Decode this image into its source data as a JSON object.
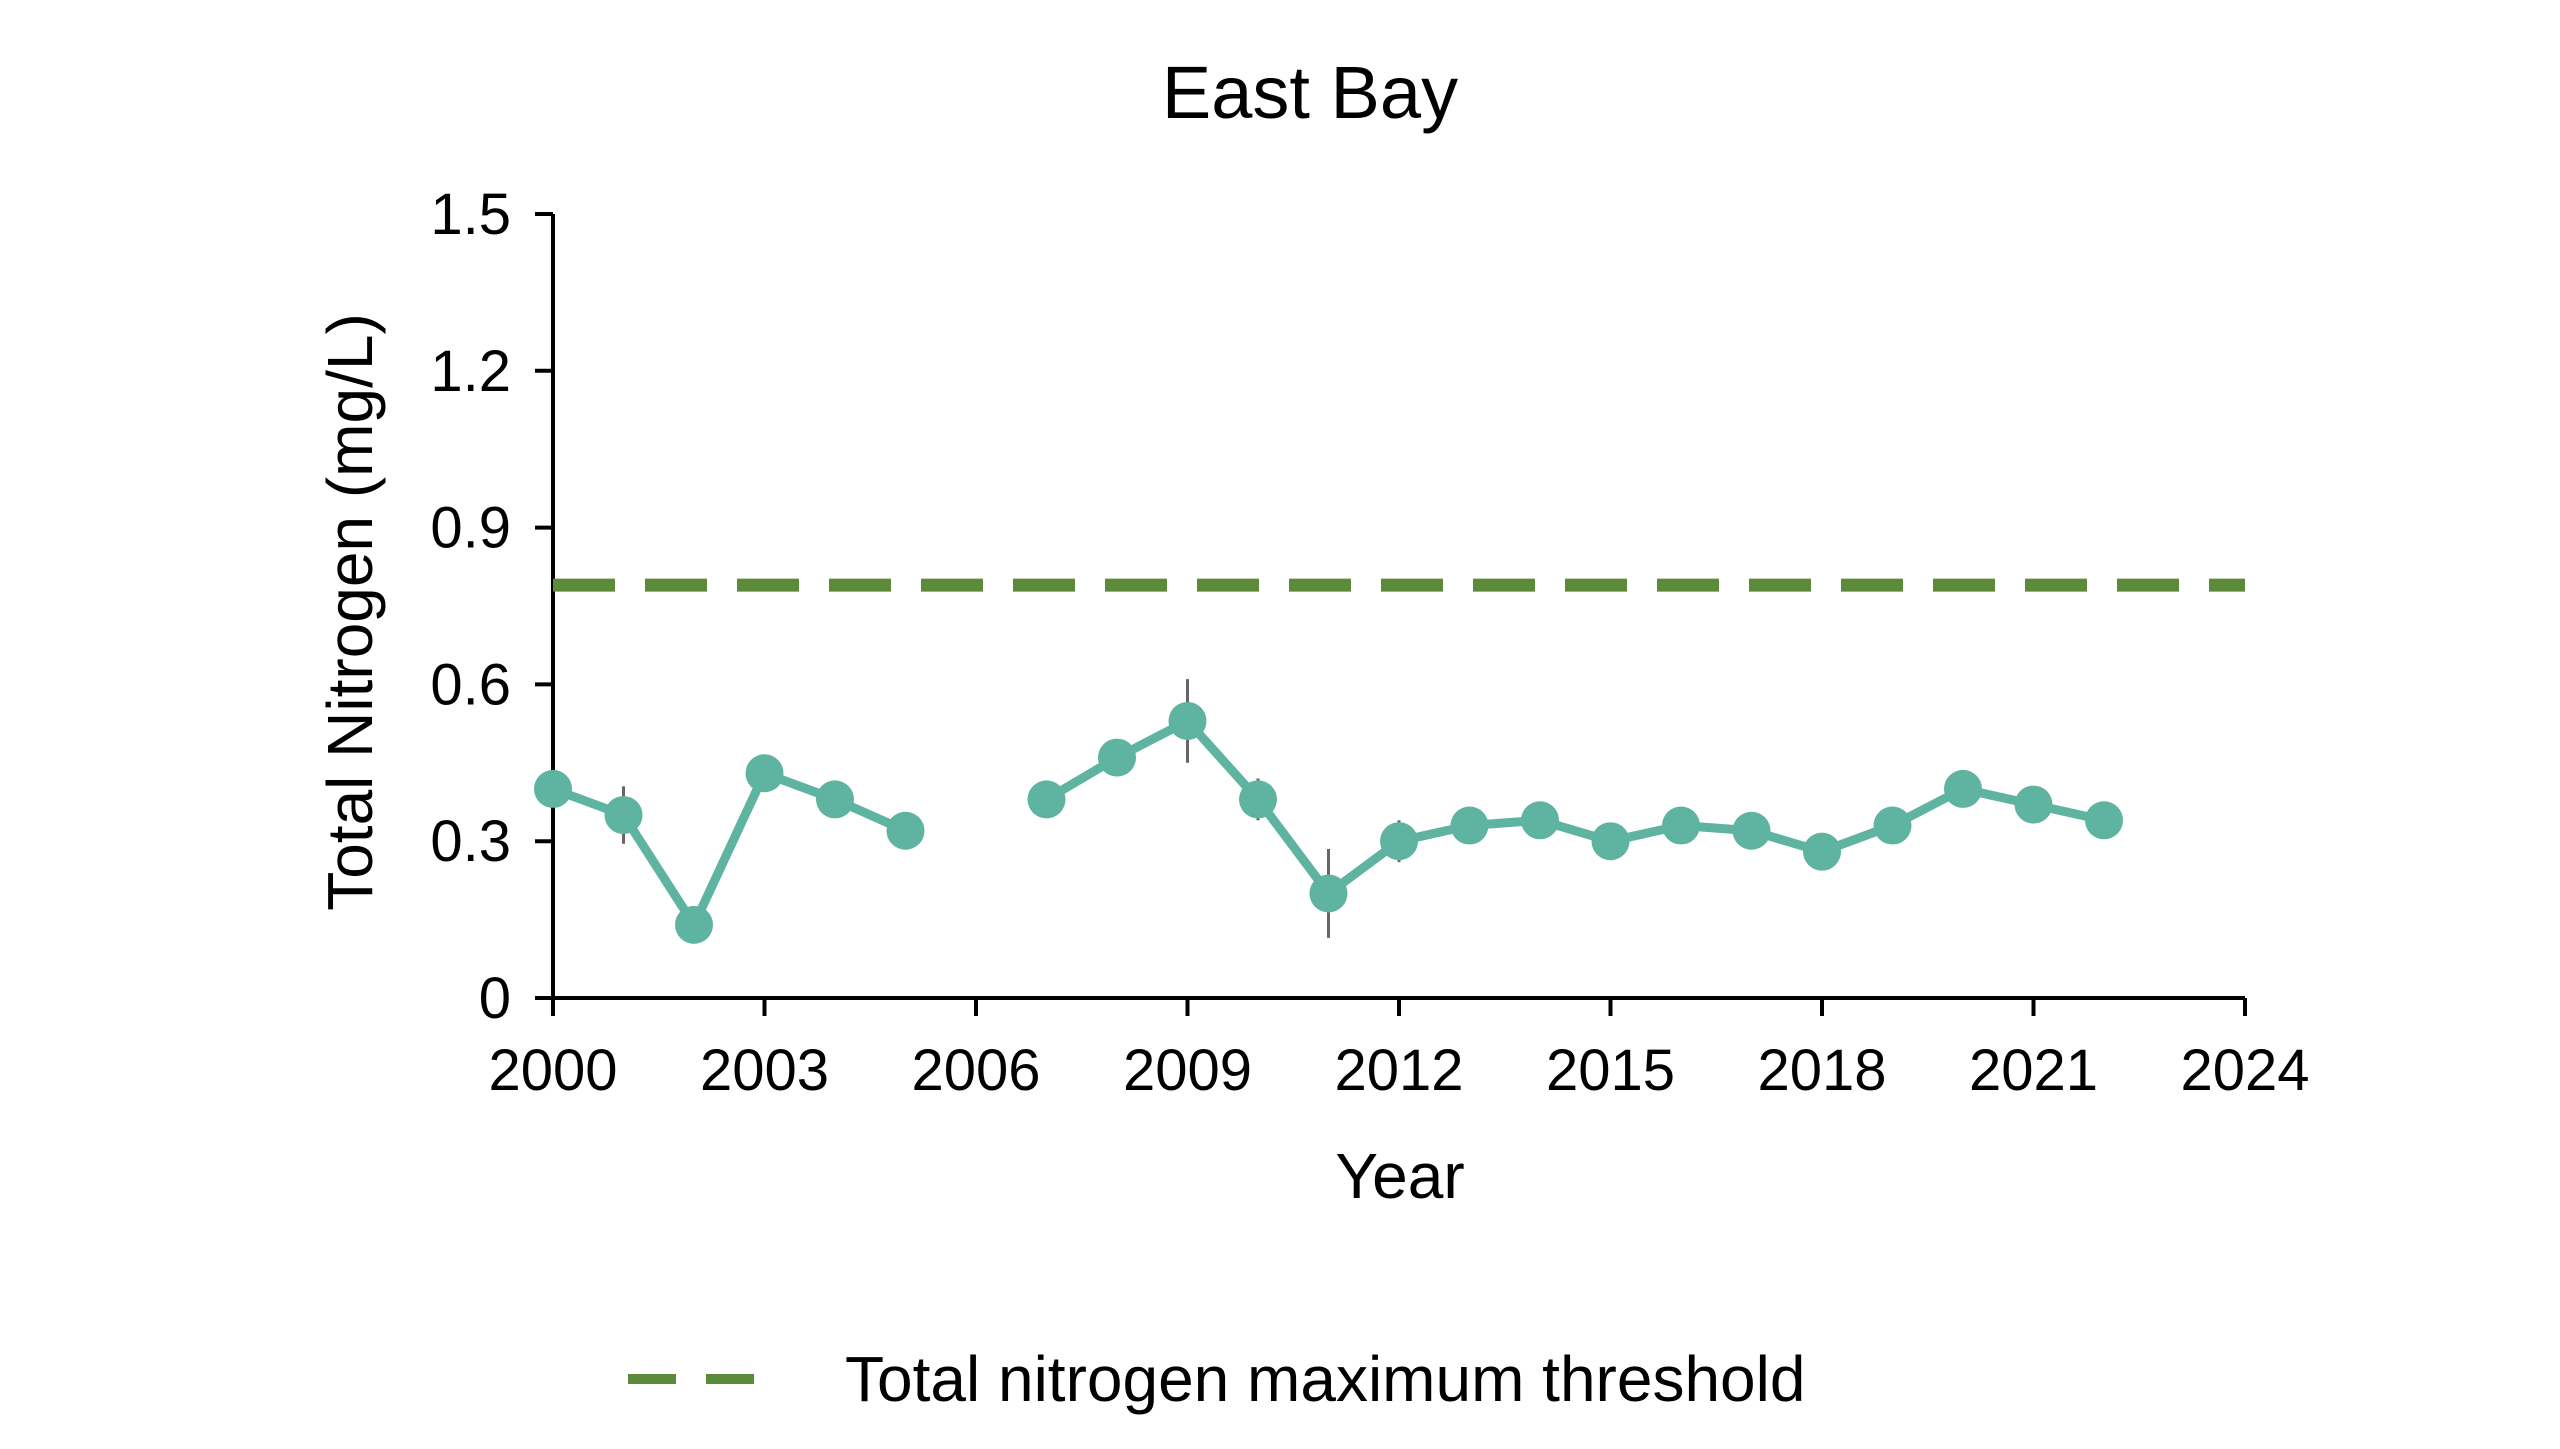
{
  "chart_data": {
    "type": "line",
    "title": "East Bay",
    "xlabel": "Year",
    "ylabel": "Total Nitrogen (mg/L)",
    "xlim": [
      2000,
      2024
    ],
    "ylim": [
      0,
      1.5
    ],
    "xticks": [
      2000,
      2003,
      2006,
      2009,
      2012,
      2015,
      2018,
      2021,
      2024
    ],
    "yticks": [
      0,
      0.3,
      0.6,
      0.9,
      1.2,
      1.5
    ],
    "xtick_labels": [
      "2000",
      "2003",
      "2006",
      "2009",
      "2012",
      "2015",
      "2018",
      "2021",
      "2024"
    ],
    "ytick_labels": [
      "0",
      "0.3",
      "0.6",
      "0.9",
      "1.2",
      "1.5"
    ],
    "grid": false,
    "legend_position": "bottom",
    "series": [
      {
        "color": "#5fb3a1",
        "points": [
          {
            "x": 2000,
            "y": 0.4,
            "err": null
          },
          {
            "x": 2001,
            "y": 0.35,
            "err": 0.055
          },
          {
            "x": 2002,
            "y": 0.14,
            "err": null
          },
          {
            "x": 2003,
            "y": 0.43,
            "err": null
          },
          {
            "x": 2004,
            "y": 0.38,
            "err": null
          },
          {
            "x": 2005,
            "y": 0.32,
            "err": null
          },
          {
            "x": 2006,
            "y": null,
            "err": null
          },
          {
            "x": 2007,
            "y": 0.38,
            "err": null
          },
          {
            "x": 2008,
            "y": 0.46,
            "err": null
          },
          {
            "x": 2009,
            "y": 0.53,
            "err": 0.08
          },
          {
            "x": 2010,
            "y": 0.38,
            "err": 0.04
          },
          {
            "x": 2011,
            "y": 0.2,
            "err": 0.085
          },
          {
            "x": 2012,
            "y": 0.3,
            "err": 0.04
          },
          {
            "x": 2013,
            "y": 0.33,
            "err": null
          },
          {
            "x": 2014,
            "y": 0.34,
            "err": null
          },
          {
            "x": 2015,
            "y": 0.3,
            "err": null
          },
          {
            "x": 2016,
            "y": 0.33,
            "err": null
          },
          {
            "x": 2017,
            "y": 0.32,
            "err": null
          },
          {
            "x": 2018,
            "y": 0.28,
            "err": null
          },
          {
            "x": 2019,
            "y": 0.33,
            "err": null
          },
          {
            "x": 2020,
            "y": 0.4,
            "err": null
          },
          {
            "x": 2021,
            "y": 0.37,
            "err": null
          },
          {
            "x": 2022,
            "y": 0.34,
            "err": null
          }
        ]
      }
    ],
    "threshold": {
      "name": "Total nitrogen maximum threshold",
      "y": 0.79,
      "color": "#5a8a3a",
      "style": "dashed"
    },
    "errorbar_color": "#666666",
    "axis_color": "#000000"
  }
}
